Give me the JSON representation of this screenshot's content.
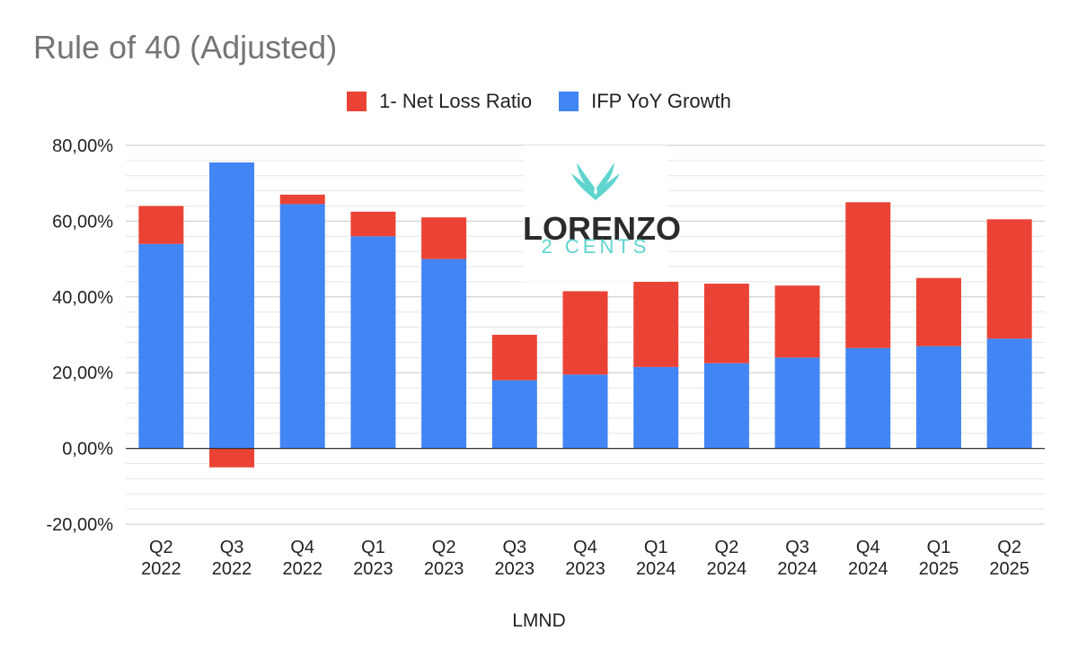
{
  "chart_data": {
    "type": "bar",
    "stacked": true,
    "title": "Rule of 40 (Adjusted)",
    "xlabel": "LMND",
    "ylabel": "",
    "ylim": [
      -20,
      80
    ],
    "yticks": [
      -20,
      0,
      20,
      40,
      60,
      80
    ],
    "ytick_labels": [
      "-20,00%",
      "0,00%",
      "20,00%",
      "40,00%",
      "60,00%",
      "80,00%"
    ],
    "legend_position": "top-center",
    "categories": [
      [
        "Q2",
        "2022"
      ],
      [
        "Q3",
        "2022"
      ],
      [
        "Q4",
        "2022"
      ],
      [
        "Q1",
        "2023"
      ],
      [
        "Q2",
        "2023"
      ],
      [
        "Q3",
        "2023"
      ],
      [
        "Q4",
        "2023"
      ],
      [
        "Q1",
        "2024"
      ],
      [
        "Q2",
        "2024"
      ],
      [
        "Q3",
        "2024"
      ],
      [
        "Q4",
        "2024"
      ],
      [
        "Q1",
        "2025"
      ],
      [
        "Q2",
        "2025"
      ]
    ],
    "series": [
      {
        "name": "1- Net Loss Ratio",
        "color": "#ea4335",
        "values": [
          10,
          -5,
          2.5,
          6.5,
          11,
          12,
          22,
          22.5,
          21,
          19,
          38.5,
          18,
          31.5
        ]
      },
      {
        "name": "IFP YoY Growth",
        "color": "#4285f4",
        "values": [
          54,
          75.5,
          64.5,
          56,
          50,
          18,
          19.5,
          21.5,
          22.5,
          24,
          26.5,
          27,
          29
        ]
      }
    ]
  },
  "watermark": {
    "brand": "LORENZO",
    "tagline": "2 CENTS",
    "logo_icon": "wings-icon"
  }
}
